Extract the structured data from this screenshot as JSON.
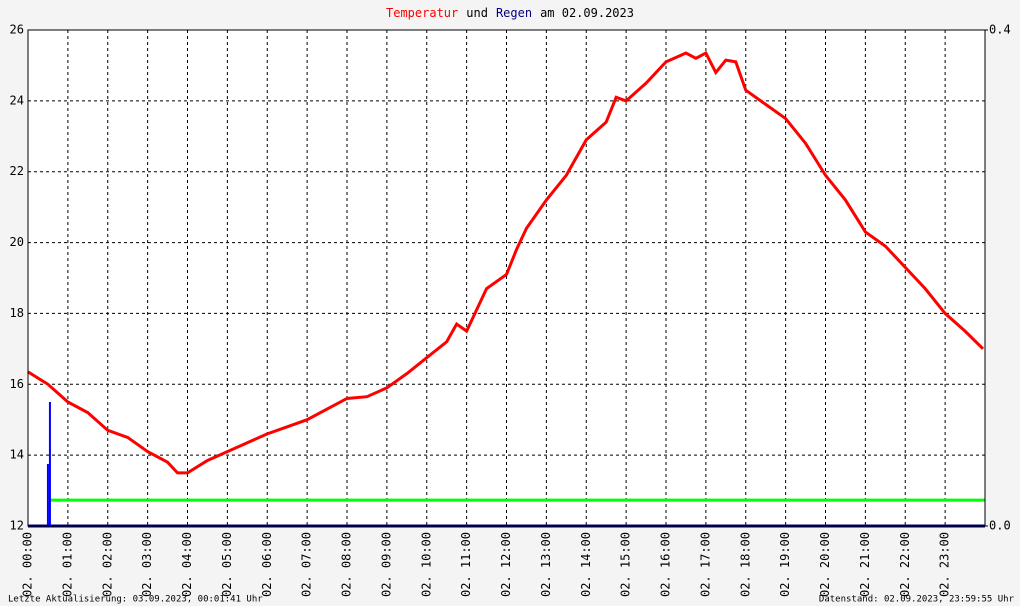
{
  "chart_data": {
    "type": "line",
    "title_parts": [
      {
        "text": "Temperatur",
        "color": "#ff0000"
      },
      {
        "text": "und",
        "color": "#000000"
      },
      {
        "text": "Regen",
        "color": "#000080"
      },
      {
        "text": "am 02.09.2023",
        "color": "#000000"
      }
    ],
    "footer_left": "Letzte Aktualisierung: 03.09.2023, 00:01:41 Uhr",
    "footer_right": "Datenstand: 02.09.2023, 23:59:55 Uhr",
    "xlim": [
      0,
      24
    ],
    "xticks": [
      {
        "value": 0,
        "label": "02. 00:00"
      },
      {
        "value": 1,
        "label": "02. 01:00"
      },
      {
        "value": 2,
        "label": "02. 02:00"
      },
      {
        "value": 3,
        "label": "02. 03:00"
      },
      {
        "value": 4,
        "label": "02. 04:00"
      },
      {
        "value": 5,
        "label": "02. 05:00"
      },
      {
        "value": 6,
        "label": "02. 06:00"
      },
      {
        "value": 7,
        "label": "02. 07:00"
      },
      {
        "value": 8,
        "label": "02. 08:00"
      },
      {
        "value": 9,
        "label": "02. 09:00"
      },
      {
        "value": 10,
        "label": "02. 10:00"
      },
      {
        "value": 11,
        "label": "02. 11:00"
      },
      {
        "value": 12,
        "label": "02. 12:00"
      },
      {
        "value": 13,
        "label": "02. 13:00"
      },
      {
        "value": 14,
        "label": "02. 14:00"
      },
      {
        "value": 15,
        "label": "02. 15:00"
      },
      {
        "value": 16,
        "label": "02. 16:00"
      },
      {
        "value": 17,
        "label": "02. 17:00"
      },
      {
        "value": 18,
        "label": "02. 18:00"
      },
      {
        "value": 19,
        "label": "02. 19:00"
      },
      {
        "value": 20,
        "label": "02. 20:00"
      },
      {
        "value": 21,
        "label": "02. 21:00"
      },
      {
        "value": 22,
        "label": "02. 22:00"
      },
      {
        "value": 23,
        "label": "02. 23:00"
      }
    ],
    "ylim": [
      12,
      26
    ],
    "yticks": [
      12,
      14,
      16,
      18,
      20,
      22,
      24,
      26
    ],
    "y2lim": [
      0,
      0.4
    ],
    "y2ticks": [
      {
        "value": 0,
        "label": "0.0"
      },
      {
        "value": 0.4,
        "label": "0.4"
      }
    ],
    "grid": true,
    "series": [
      {
        "type": "line",
        "color": "#ff0000",
        "axis": "y",
        "x": [
          0,
          0.5,
          1,
          1.5,
          2,
          2.5,
          3,
          3.5,
          3.75,
          4,
          4.5,
          5,
          5.5,
          6,
          6.5,
          7,
          7.5,
          8,
          8.5,
          9,
          9.5,
          10,
          10.5,
          10.75,
          11,
          11.5,
          12,
          12.25,
          12.5,
          13,
          13.5,
          14,
          14.5,
          14.75,
          15,
          15.5,
          16,
          16.5,
          16.75,
          17,
          17.25,
          17.5,
          17.75,
          18,
          18.5,
          19,
          19.5,
          20,
          20.5,
          21,
          21.5,
          22,
          22.5,
          23,
          23.5,
          23.95
        ],
        "values": [
          16.35,
          16.0,
          15.5,
          15.2,
          14.7,
          14.5,
          14.1,
          13.8,
          13.5,
          13.5,
          13.85,
          14.1,
          14.35,
          14.6,
          14.8,
          15.0,
          15.3,
          15.6,
          15.65,
          15.9,
          16.3,
          16.75,
          17.2,
          17.7,
          17.5,
          18.7,
          19.1,
          19.8,
          20.4,
          21.2,
          21.9,
          22.9,
          23.4,
          24.1,
          24.0,
          24.5,
          25.1,
          25.35,
          25.2,
          25.35,
          24.8,
          25.15,
          25.1,
          24.3,
          23.9,
          23.5,
          22.8,
          21.9,
          21.2,
          20.3,
          19.9,
          19.3,
          18.7,
          18.0,
          17.5,
          17.0
        ]
      },
      {
        "type": "bar",
        "color": "#0000ff",
        "axis": "y2",
        "x": [
          0.5,
          0.55
        ],
        "values": [
          0.05,
          0.1
        ]
      }
    ],
    "reference_line": {
      "value": 12.73,
      "color": "#00ff00"
    }
  }
}
